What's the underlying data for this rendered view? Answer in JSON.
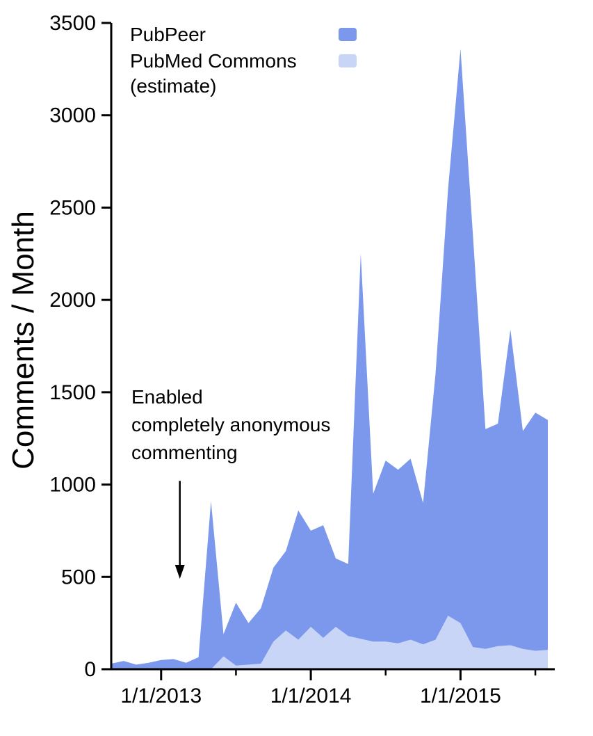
{
  "chart_data": {
    "type": "area",
    "title": "",
    "ylabel": "Comments / Month",
    "xlabel": "",
    "ylim": [
      0,
      3500
    ],
    "yticks": [
      0,
      500,
      1000,
      1500,
      2000,
      2500,
      3000,
      3500
    ],
    "grid": false,
    "legend_position": "top-left",
    "x_months": [
      "2012-09",
      "2012-10",
      "2012-11",
      "2012-12",
      "2013-01",
      "2013-02",
      "2013-03",
      "2013-04",
      "2013-05",
      "2013-06",
      "2013-07",
      "2013-08",
      "2013-09",
      "2013-10",
      "2013-11",
      "2013-12",
      "2014-01",
      "2014-02",
      "2014-03",
      "2014-04",
      "2014-05",
      "2014-06",
      "2014-07",
      "2014-08",
      "2014-09",
      "2014-10",
      "2014-11",
      "2014-12",
      "2015-01",
      "2015-02",
      "2015-03",
      "2015-04",
      "2015-05",
      "2015-06",
      "2015-07",
      "2015-08"
    ],
    "x_major_ticks": [
      {
        "month": "2013-01",
        "label": "1/1/2013"
      },
      {
        "month": "2014-01",
        "label": "1/1/2014"
      },
      {
        "month": "2015-01",
        "label": "1/1/2015"
      }
    ],
    "x_minor_ticks": [
      "2013-07",
      "2014-07",
      "2015-07"
    ],
    "series": [
      {
        "name": "PubPeer",
        "color": "#7b98ec",
        "values": [
          30,
          45,
          25,
          35,
          50,
          55,
          35,
          65,
          910,
          190,
          360,
          250,
          330,
          550,
          640,
          860,
          750,
          780,
          600,
          570,
          2250,
          950,
          1130,
          1080,
          1140,
          900,
          1600,
          2600,
          3360,
          2350,
          1300,
          1330,
          1840,
          1290,
          1390,
          1350
        ]
      },
      {
        "name": "PubMed Commons (estimate)",
        "color": "#c8d5f6",
        "values": [
          0,
          0,
          0,
          0,
          0,
          0,
          0,
          0,
          0,
          70,
          20,
          25,
          30,
          150,
          210,
          160,
          230,
          170,
          230,
          180,
          165,
          150,
          150,
          140,
          160,
          135,
          160,
          290,
          250,
          120,
          110,
          125,
          130,
          110,
          100,
          105
        ]
      }
    ],
    "legend": {
      "entries": [
        {
          "lines": [
            "PubPeer"
          ]
        },
        {
          "lines": [
            "PubMed Commons",
            "(estimate)"
          ]
        }
      ]
    },
    "annotation": {
      "lines": [
        "Enabled",
        "completely anonymous",
        "commenting"
      ],
      "arrow": {
        "month": "2013-02",
        "from_value": 1020,
        "to_value": 490
      }
    },
    "axis_color": "#000000"
  }
}
